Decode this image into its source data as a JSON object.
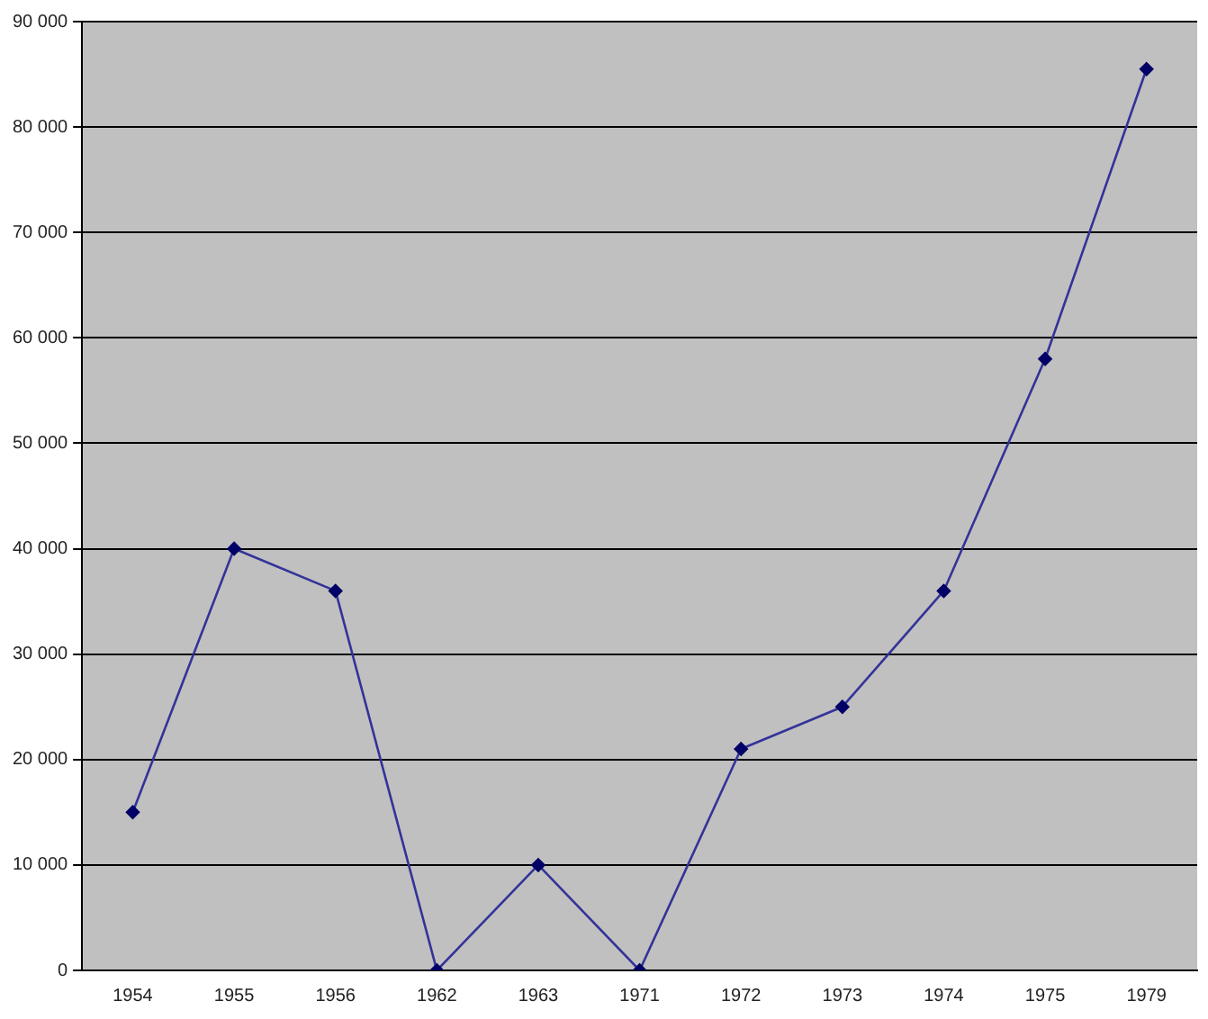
{
  "chart_data": {
    "type": "line",
    "categories": [
      "1954",
      "1955",
      "1956",
      "1962",
      "1963",
      "1971",
      "1972",
      "1973",
      "1974",
      "1975",
      "1979"
    ],
    "series": [
      {
        "color": "#333399",
        "values": [
          15000,
          40000,
          36000,
          0,
          10000,
          0,
          21000,
          25000,
          36000,
          58000,
          85500
        ]
      }
    ],
    "ylim": [
      0,
      90000
    ],
    "yticks": [
      {
        "value": 0,
        "label": "0"
      },
      {
        "value": 10000,
        "label": "10 000"
      },
      {
        "value": 20000,
        "label": "20 000"
      },
      {
        "value": 30000,
        "label": "30 000"
      },
      {
        "value": 40000,
        "label": "40 000"
      },
      {
        "value": 50000,
        "label": "50 000"
      },
      {
        "value": 60000,
        "label": "60 000"
      },
      {
        "value": 70000,
        "label": "70 000"
      },
      {
        "value": 80000,
        "label": "80 000"
      },
      {
        "value": 90000,
        "label": "90 000"
      }
    ],
    "grid": "y",
    "legend": false,
    "marker": "diamond",
    "line_style": "solid"
  }
}
